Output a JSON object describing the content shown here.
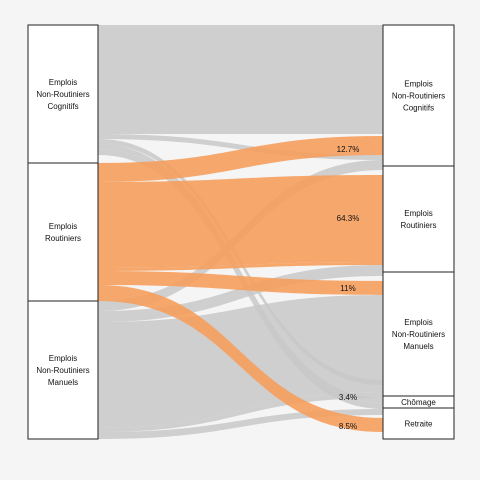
{
  "chart_data": {
    "type": "sankey",
    "left_nodes": [
      {
        "id": "nrc",
        "label": [
          "Emplois",
          "Non-Routiniers",
          "Cognitifs"
        ]
      },
      {
        "id": "r",
        "label": [
          "Emplois",
          "Routiniers"
        ]
      },
      {
        "id": "nrm",
        "label": [
          "Emplois",
          "Non-Routiniers",
          "Manuels"
        ]
      }
    ],
    "right_nodes": [
      {
        "id": "nrc",
        "label": [
          "Emplois",
          "Non-Routiniers",
          "Cognitifs"
        ],
        "share": "12.7%"
      },
      {
        "id": "r",
        "label": [
          "Emplois",
          "Routiniers"
        ],
        "share": "64.3%"
      },
      {
        "id": "nrm",
        "label": [
          "Emplois",
          "Non-Routiniers",
          "Manuels"
        ],
        "share": "11%"
      },
      {
        "id": "chomage",
        "label": [
          "Chômage"
        ],
        "share": "3.4%"
      },
      {
        "id": "retraite",
        "label": [
          "Retraite"
        ],
        "share": "8.5%"
      }
    ],
    "highlight_source": "r",
    "colors": {
      "highlight": "#f5a060",
      "other": "#c8c8c8",
      "node_fill": "#ffffff",
      "node_stroke": "#222222",
      "background": "#f5f5f5"
    }
  }
}
